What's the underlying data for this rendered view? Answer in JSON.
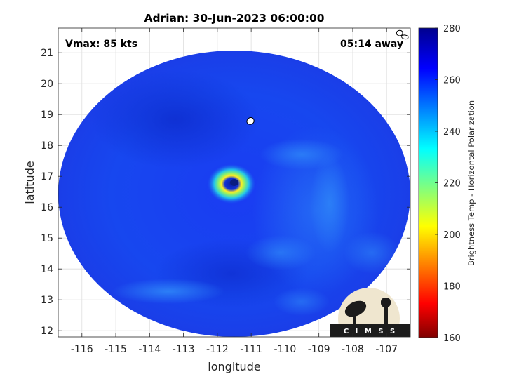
{
  "title": "Adrian: 30-Jun-2023 06:00:00",
  "annotations": {
    "vmax": "Vmax: 85 kts",
    "time_away": "05:14 away"
  },
  "logo_text": "C I M S S",
  "chart_data": {
    "type": "heatmap",
    "title": "Adrian: 30-Jun-2023 06:00:00",
    "xlabel": "longitude",
    "ylabel": "latitude",
    "xlim": [
      -116.7,
      -106.3
    ],
    "ylim": [
      11.8,
      21.8
    ],
    "xticks": [
      -116,
      -115,
      -114,
      -113,
      -112,
      -111,
      -110,
      -109,
      -108,
      -107
    ],
    "yticks": [
      12,
      13,
      14,
      15,
      16,
      17,
      18,
      19,
      20,
      21
    ],
    "grid": true,
    "colorbar": {
      "label": "Brightness Temp - Horizontal Polarization",
      "range": [
        160,
        280
      ],
      "ticks": [
        160,
        180,
        200,
        220,
        240,
        260,
        280
      ],
      "colormap": "jet"
    },
    "storm_center": {
      "lon": -111.9,
      "lat": 16.8
    },
    "swath_center": {
      "lon": -111.4,
      "lat": 16.8
    },
    "eyewall_min_temp": 205,
    "background_temp": 262
  },
  "colors": {
    "jet": [
      "#00008f",
      "#0000ff",
      "#00ffff",
      "#ffff00",
      "#ff0000",
      "#800000"
    ],
    "axis": "#262626",
    "grid": "#dedede",
    "logo_bg": "#efe6cf",
    "logo_dark": "#1c1c1c"
  }
}
